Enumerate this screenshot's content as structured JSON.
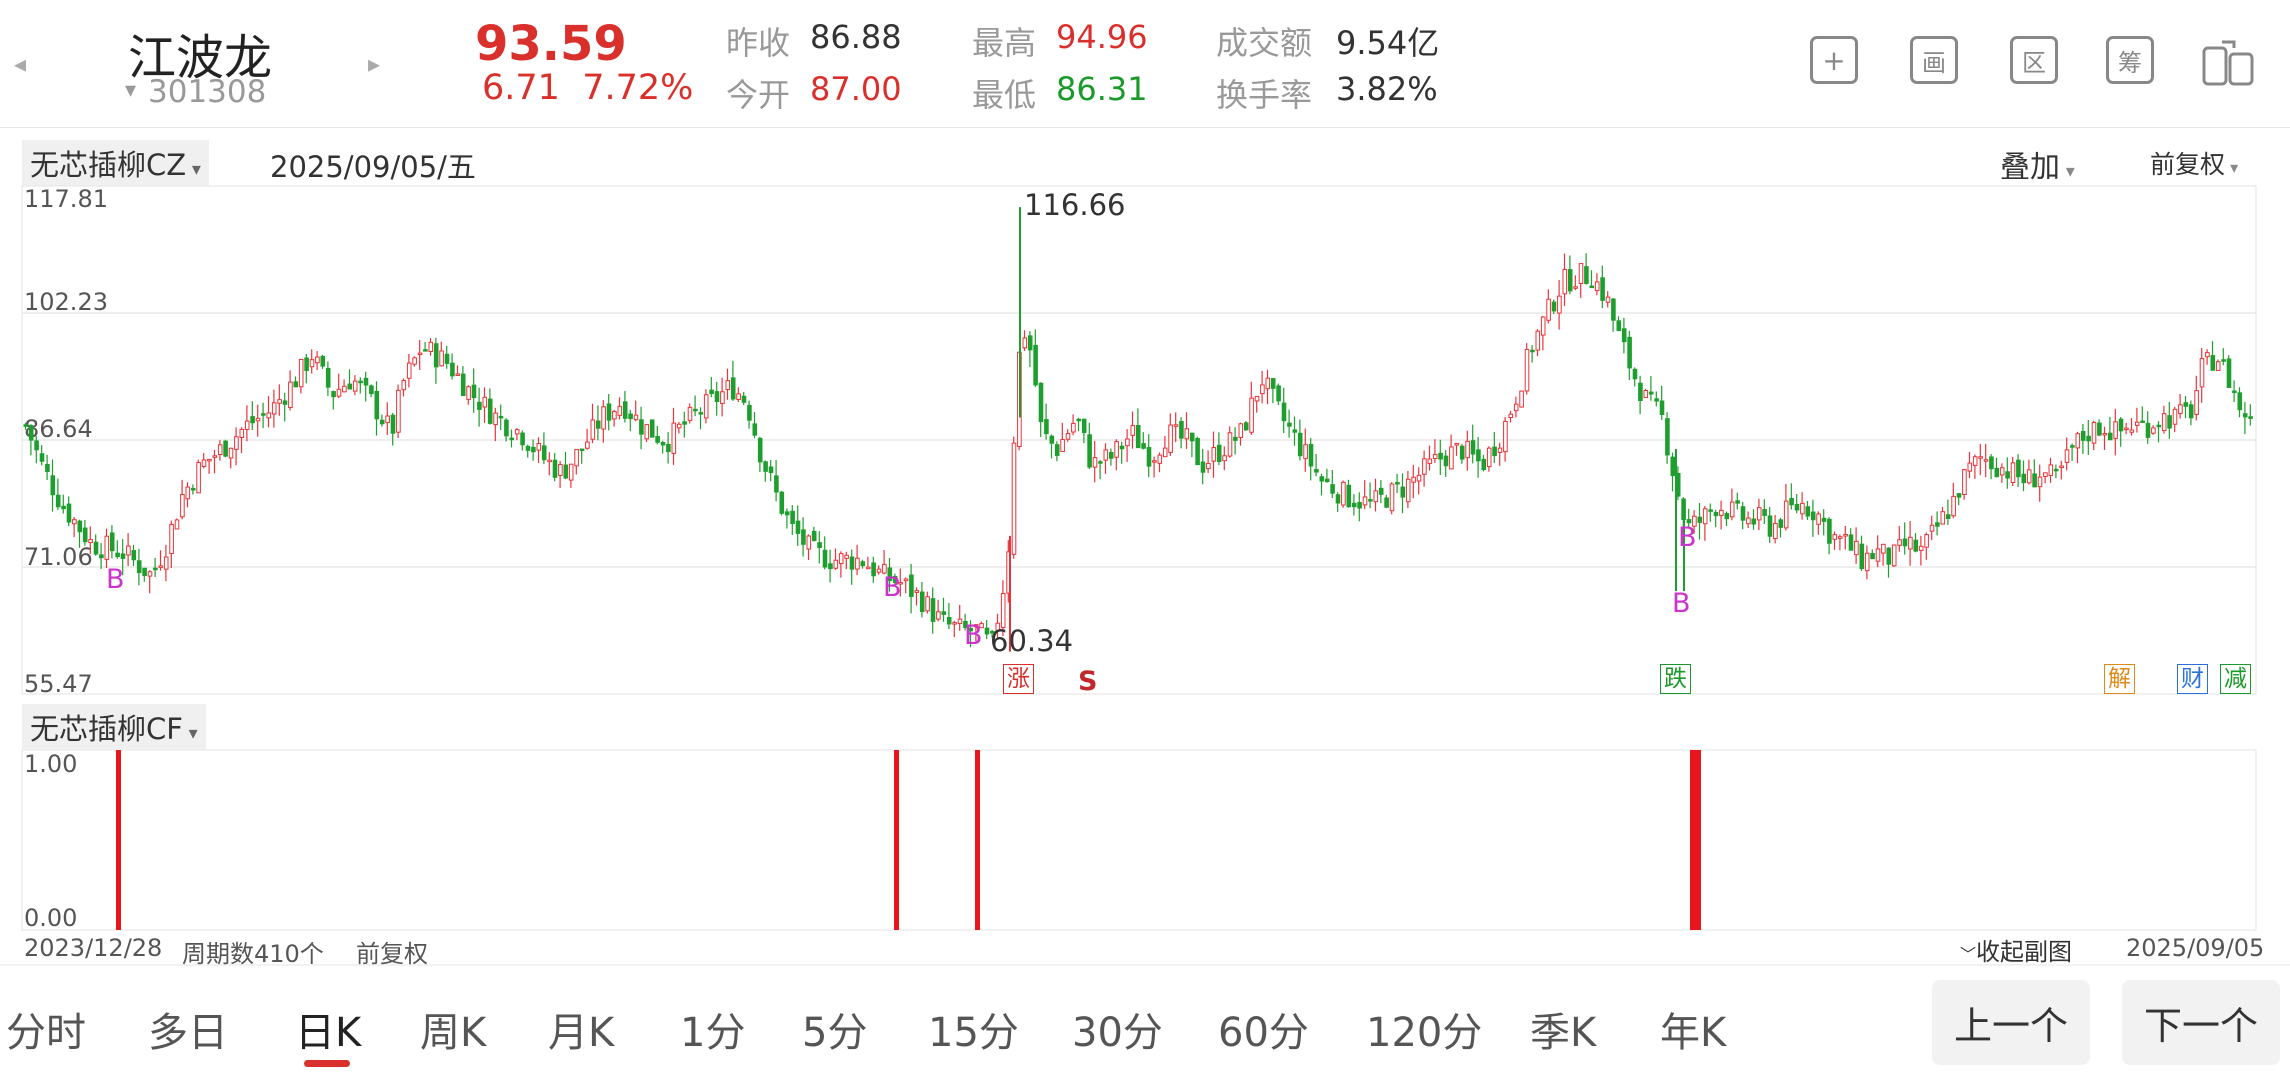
{
  "stock": {
    "name": "江波龙",
    "code": "301308",
    "price": "93.59",
    "change": "6.71",
    "change_pct": "7.72%",
    "prev_close_label": "昨收",
    "prev_close": "86.88",
    "open_label": "今开",
    "open": "87.00",
    "high_label": "最高",
    "high": "94.96",
    "low_label": "最低",
    "low": "86.31",
    "amount_label": "成交额",
    "amount": "9.54亿",
    "turnover_label": "换手率",
    "turnover": "3.82%"
  },
  "toolbar": {
    "icons": [
      "add-icon",
      "draw-icon",
      "range-icon",
      "chip-icon",
      "switch-screen-icon"
    ],
    "draw_label": "画",
    "range_label": "区",
    "chip_label": "筹"
  },
  "main_chart": {
    "indicator": "无芯插柳CZ",
    "date": "2025/09/05/五",
    "overlay_label": "叠加",
    "adjust_label": "前复权",
    "y_ticks": [
      "117.81",
      "102.23",
      "86.64",
      "71.06",
      "55.47"
    ],
    "high_label": "116.66",
    "low_label": "60.34",
    "b_marks": [
      "B",
      "B",
      "B",
      "B",
      "B"
    ],
    "s_mark": "S",
    "tags": {
      "zhang": "涨",
      "die": "跌",
      "jie": "解",
      "cai": "财",
      "jian": "减"
    },
    "colors": {
      "up": "#e8333a",
      "down": "#1e9e2e",
      "grid": "#dddddd"
    }
  },
  "sub_chart": {
    "indicator": "无芯插柳CF",
    "y_max": "1.00",
    "y_min": "0.00",
    "signal_bars": 4
  },
  "footer": {
    "start_date": "2023/12/28",
    "period_count": "周期数410个",
    "adjust": "前复权",
    "collapse": "收起副图",
    "end_date": "2025/09/05"
  },
  "chart_data": {
    "type": "candlestick",
    "x_range": [
      "2023/12/28",
      "2025/09/05"
    ],
    "ylim": [
      55.47,
      117.81
    ],
    "period_count": 410,
    "extremes": {
      "high": 116.66,
      "low": 60.34
    },
    "sub_signal": {
      "ylim": [
        0,
        1
      ],
      "signals": 4
    }
  },
  "period_tabs": [
    "分时",
    "多日",
    "日K",
    "周K",
    "月K",
    "1分",
    "5分",
    "15分",
    "30分",
    "60分",
    "120分",
    "季K",
    "年K"
  ],
  "active_tab": "日K",
  "nav": {
    "prev": "上一个",
    "next": "下一个"
  }
}
